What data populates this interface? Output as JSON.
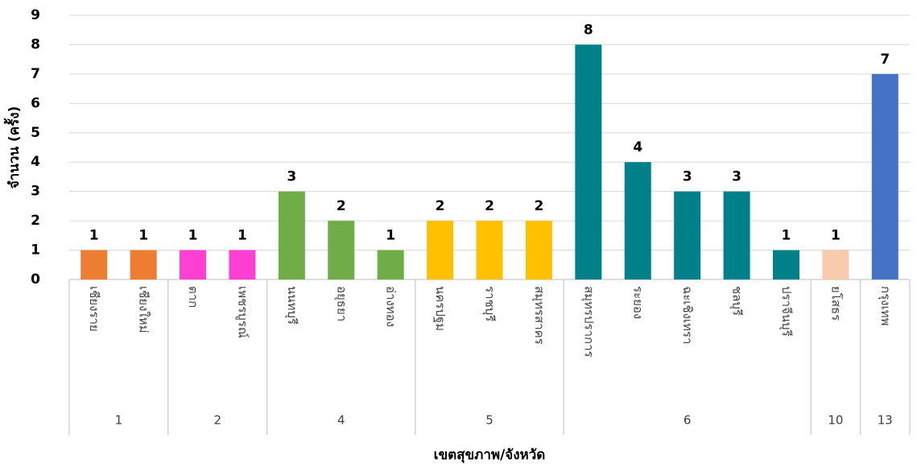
{
  "chart_data": {
    "type": "bar",
    "x_label": "เขตสุขภาพ/จังหวัด",
    "y_label": "จำนวน (ครั้ง)",
    "ylim": [
      0,
      9
    ],
    "yticks": [
      0,
      1,
      2,
      3,
      4,
      5,
      6,
      7,
      8,
      9
    ],
    "grid": true,
    "groups": [
      {
        "label": "1",
        "color": "#ED7D31",
        "categories": [
          "เชียงราย",
          "เชียงใหม่"
        ],
        "values": [
          1,
          1
        ]
      },
      {
        "label": "2",
        "color": "#FF3FD3",
        "categories": [
          "ตาก",
          "เพชรบูรณ์"
        ],
        "values": [
          1,
          1
        ]
      },
      {
        "label": "4",
        "color": "#70AD47",
        "categories": [
          "นนทบุรี",
          "อยุธยา",
          "อ่างทอง"
        ],
        "values": [
          3,
          2,
          1
        ]
      },
      {
        "label": "5",
        "color": "#FFC000",
        "categories": [
          "นครปฐม",
          "ราชบุรี",
          "สมุทรสาคร"
        ],
        "values": [
          2,
          2,
          2
        ]
      },
      {
        "label": "6",
        "color": "#00818A",
        "categories": [
          "สมุทรปราการ",
          "ระยอง",
          "ฉะเชิงเทรา",
          "ชลบุรี",
          "ปราจีนบุรี"
        ],
        "values": [
          8,
          4,
          3,
          3,
          1
        ]
      },
      {
        "label": "10",
        "color": "#F8CBAD",
        "categories": [
          "ยโสธร"
        ],
        "values": [
          1
        ]
      },
      {
        "label": "13",
        "color": "#4472C4",
        "categories": [
          "กรุงเทพ"
        ],
        "values": [
          7
        ]
      }
    ]
  }
}
